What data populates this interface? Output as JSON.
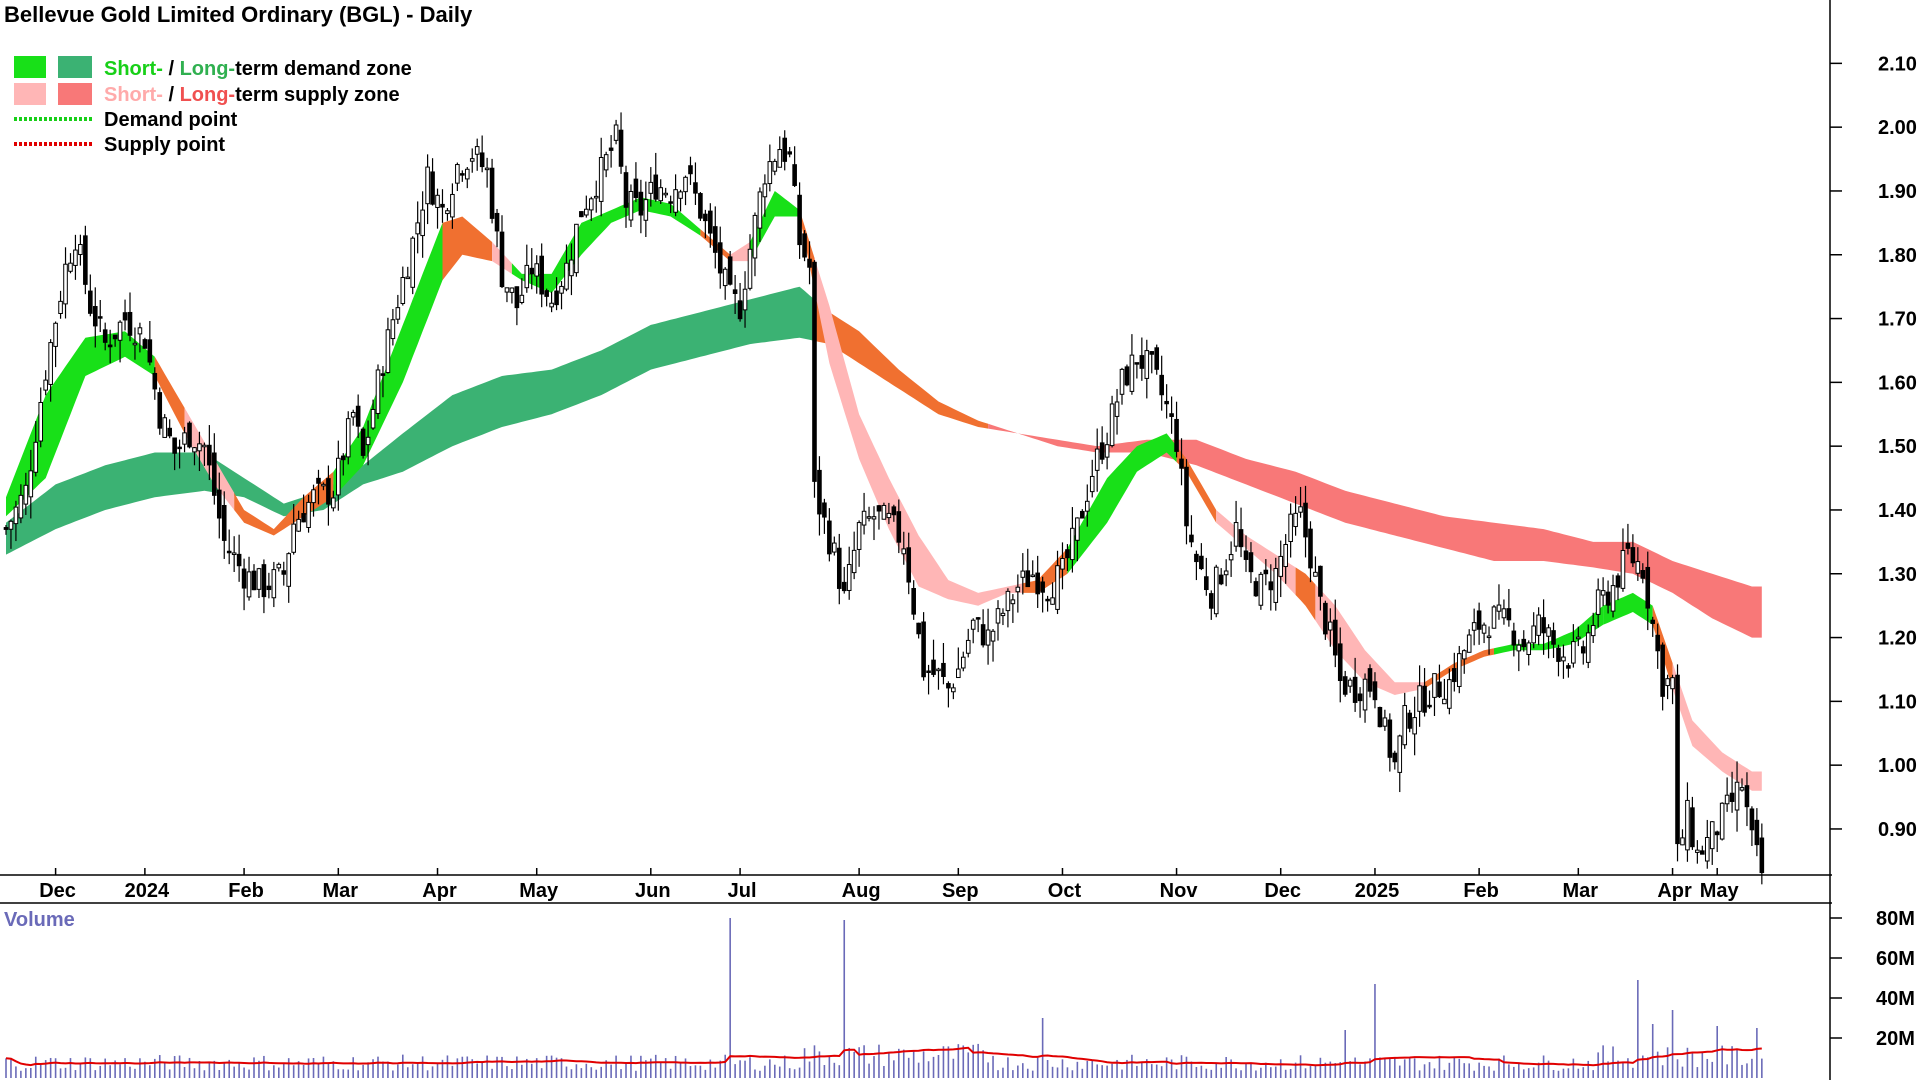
{
  "chart_data": {
    "type": "candlestick",
    "title": "Bellevue Gold Limited Ordinary (BGL) - Daily",
    "legend": {
      "position": "top-left",
      "items": [
        {
          "swatches": [
            "#18e018",
            "#3bb273"
          ],
          "parts": [
            "Short-",
            " / ",
            "Long-",
            "term demand zone"
          ],
          "part_colors": [
            "#18d018",
            "#000000",
            "#30b050",
            "#000000"
          ]
        },
        {
          "swatches": [
            "#ffb6b6",
            "#f87878"
          ],
          "parts": [
            "Short-",
            " / ",
            "Long-",
            "term supply zone"
          ],
          "part_colors": [
            "#ffaaaa",
            "#000000",
            "#f05050",
            "#000000"
          ]
        },
        {
          "line_color": "#18d018",
          "parts": [
            "Demand point"
          ],
          "part_colors": [
            "#000000"
          ]
        },
        {
          "line_color": "#e00000",
          "parts": [
            "Supply point"
          ],
          "part_colors": [
            "#000000"
          ]
        }
      ]
    },
    "price_axis": {
      "side": "right",
      "ylim": [
        0.82,
        2.15
      ],
      "ticks": [
        "2.10",
        "2.00",
        "1.90",
        "1.80",
        "1.70",
        "1.60",
        "1.50",
        "1.40",
        "1.30",
        "1.20",
        "1.10",
        "1.00",
        "0.90"
      ]
    },
    "x_axis": {
      "labels": [
        "Dec",
        "2024",
        "Feb",
        "Mar",
        "Apr",
        "May",
        "Jun",
        "Jul",
        "Aug",
        "Sep",
        "Oct",
        "Nov",
        "Dec",
        "2025",
        "Feb",
        "Mar",
        "Apr",
        "May"
      ],
      "label_index": [
        10,
        28,
        48,
        67,
        87,
        107,
        130,
        148,
        172,
        192,
        213,
        236,
        257,
        276,
        297,
        317,
        336,
        345
      ]
    },
    "colors": {
      "short_demand": "#18e018",
      "long_demand": "#3bb273",
      "short_supply": "#ffb6b6",
      "long_supply": "#f87878",
      "transition": "#f07030",
      "candle_up_fill": "#ffffff",
      "candle_down_fill": "#000000",
      "volume_bar": "#6a6ab8",
      "volume_avg": "#e00000"
    },
    "close_keypoints": [
      [
        0,
        1.37
      ],
      [
        4,
        1.43
      ],
      [
        8,
        1.62
      ],
      [
        12,
        1.78
      ],
      [
        14,
        1.83
      ],
      [
        17,
        1.72
      ],
      [
        20,
        1.66
      ],
      [
        24,
        1.7
      ],
      [
        28,
        1.67
      ],
      [
        31,
        1.55
      ],
      [
        34,
        1.49
      ],
      [
        37,
        1.52
      ],
      [
        40,
        1.5
      ],
      [
        44,
        1.35
      ],
      [
        48,
        1.3
      ],
      [
        52,
        1.28
      ],
      [
        56,
        1.3
      ],
      [
        58,
        1.38
      ],
      [
        62,
        1.42
      ],
      [
        66,
        1.43
      ],
      [
        70,
        1.55
      ],
      [
        72,
        1.48
      ],
      [
        75,
        1.6
      ],
      [
        78,
        1.7
      ],
      [
        82,
        1.82
      ],
      [
        85,
        1.92
      ],
      [
        88,
        1.87
      ],
      [
        91,
        1.94
      ],
      [
        94,
        1.96
      ],
      [
        97,
        1.93
      ],
      [
        100,
        1.77
      ],
      [
        103,
        1.72
      ],
      [
        106,
        1.78
      ],
      [
        110,
        1.73
      ],
      [
        113,
        1.78
      ],
      [
        116,
        1.87
      ],
      [
        120,
        1.93
      ],
      [
        123,
        1.98
      ],
      [
        125,
        1.88
      ],
      [
        128,
        1.87
      ],
      [
        131,
        1.91
      ],
      [
        134,
        1.9
      ],
      [
        137,
        1.93
      ],
      [
        140,
        1.87
      ],
      [
        143,
        1.8
      ],
      [
        146,
        1.73
      ],
      [
        148,
        1.72
      ],
      [
        150,
        1.81
      ],
      [
        153,
        1.93
      ],
      [
        156,
        1.97
      ],
      [
        158,
        1.95
      ],
      [
        160,
        1.82
      ],
      [
        162,
        1.78
      ],
      [
        163,
        1.43
      ],
      [
        165,
        1.38
      ],
      [
        167,
        1.33
      ],
      [
        169,
        1.26
      ],
      [
        172,
        1.37
      ],
      [
        175,
        1.39
      ],
      [
        178,
        1.38
      ],
      [
        181,
        1.35
      ],
      [
        183,
        1.25
      ],
      [
        185,
        1.15
      ],
      [
        188,
        1.14
      ],
      [
        190,
        1.12
      ],
      [
        192,
        1.15
      ],
      [
        195,
        1.22
      ],
      [
        198,
        1.2
      ],
      [
        201,
        1.24
      ],
      [
        204,
        1.28
      ],
      [
        207,
        1.3
      ],
      [
        210,
        1.28
      ],
      [
        213,
        1.3
      ],
      [
        216,
        1.37
      ],
      [
        219,
        1.46
      ],
      [
        222,
        1.52
      ],
      [
        225,
        1.6
      ],
      [
        228,
        1.64
      ],
      [
        231,
        1.62
      ],
      [
        234,
        1.56
      ],
      [
        236,
        1.51
      ],
      [
        238,
        1.38
      ],
      [
        240,
        1.32
      ],
      [
        243,
        1.27
      ],
      [
        246,
        1.32
      ],
      [
        248,
        1.37
      ],
      [
        250,
        1.3
      ],
      [
        253,
        1.28
      ],
      [
        256,
        1.3
      ],
      [
        259,
        1.37
      ],
      [
        261,
        1.39
      ],
      [
        263,
        1.33
      ],
      [
        265,
        1.25
      ],
      [
        267,
        1.2
      ],
      [
        269,
        1.13
      ],
      [
        272,
        1.12
      ],
      [
        274,
        1.13
      ],
      [
        276,
        1.12
      ],
      [
        278,
        1.05
      ],
      [
        280,
        1.0
      ],
      [
        282,
        1.07
      ],
      [
        285,
        1.1
      ],
      [
        288,
        1.12
      ],
      [
        291,
        1.13
      ],
      [
        294,
        1.18
      ],
      [
        297,
        1.22
      ],
      [
        300,
        1.23
      ],
      [
        303,
        1.22
      ],
      [
        306,
        1.19
      ],
      [
        309,
        1.22
      ],
      [
        312,
        1.19
      ],
      [
        315,
        1.17
      ],
      [
        318,
        1.18
      ],
      [
        321,
        1.25
      ],
      [
        324,
        1.28
      ],
      [
        327,
        1.33
      ],
      [
        330,
        1.31
      ],
      [
        332,
        1.22
      ],
      [
        334,
        1.13
      ],
      [
        336,
        1.13
      ],
      [
        337,
        0.86
      ],
      [
        339,
        0.92
      ],
      [
        341,
        0.86
      ],
      [
        344,
        0.89
      ],
      [
        347,
        0.93
      ],
      [
        350,
        0.97
      ],
      [
        352,
        0.88
      ],
      [
        354,
        0.83
      ]
    ],
    "band_keypoints": {
      "short_upper": [
        [
          0,
          1.42
        ],
        [
          8,
          1.58
        ],
        [
          16,
          1.67
        ],
        [
          24,
          1.68
        ],
        [
          30,
          1.64
        ],
        [
          36,
          1.56
        ],
        [
          42,
          1.48
        ],
        [
          48,
          1.4
        ],
        [
          54,
          1.37
        ],
        [
          60,
          1.42
        ],
        [
          66,
          1.46
        ],
        [
          72,
          1.53
        ],
        [
          80,
          1.69
        ],
        [
          88,
          1.85
        ],
        [
          92,
          1.86
        ],
        [
          98,
          1.82
        ],
        [
          104,
          1.77
        ],
        [
          110,
          1.77
        ],
        [
          116,
          1.85
        ],
        [
          122,
          1.87
        ],
        [
          128,
          1.89
        ],
        [
          134,
          1.88
        ],
        [
          140,
          1.84
        ],
        [
          146,
          1.8
        ],
        [
          150,
          1.82
        ],
        [
          155,
          1.9
        ],
        [
          160,
          1.87
        ],
        [
          166,
          1.72
        ],
        [
          172,
          1.55
        ],
        [
          178,
          1.45
        ],
        [
          184,
          1.36
        ],
        [
          190,
          1.29
        ],
        [
          196,
          1.27
        ],
        [
          202,
          1.28
        ],
        [
          208,
          1.29
        ],
        [
          214,
          1.34
        ],
        [
          222,
          1.45
        ],
        [
          228,
          1.5
        ],
        [
          234,
          1.52
        ],
        [
          238,
          1.48
        ],
        [
          244,
          1.4
        ],
        [
          250,
          1.36
        ],
        [
          256,
          1.33
        ],
        [
          262,
          1.3
        ],
        [
          268,
          1.25
        ],
        [
          274,
          1.18
        ],
        [
          280,
          1.13
        ],
        [
          286,
          1.13
        ],
        [
          292,
          1.16
        ],
        [
          298,
          1.18
        ],
        [
          304,
          1.19
        ],
        [
          310,
          1.19
        ],
        [
          316,
          1.21
        ],
        [
          322,
          1.25
        ],
        [
          328,
          1.27
        ],
        [
          332,
          1.25
        ],
        [
          336,
          1.16
        ],
        [
          340,
          1.07
        ],
        [
          346,
          1.02
        ],
        [
          352,
          0.99
        ]
      ],
      "short_lower": [
        [
          0,
          1.39
        ],
        [
          8,
          1.45
        ],
        [
          16,
          1.61
        ],
        [
          24,
          1.64
        ],
        [
          30,
          1.61
        ],
        [
          36,
          1.52
        ],
        [
          42,
          1.44
        ],
        [
          48,
          1.38
        ],
        [
          54,
          1.36
        ],
        [
          60,
          1.39
        ],
        [
          66,
          1.42
        ],
        [
          72,
          1.47
        ],
        [
          80,
          1.6
        ],
        [
          88,
          1.76
        ],
        [
          92,
          1.8
        ],
        [
          98,
          1.79
        ],
        [
          104,
          1.76
        ],
        [
          110,
          1.74
        ],
        [
          116,
          1.8
        ],
        [
          122,
          1.85
        ],
        [
          128,
          1.87
        ],
        [
          134,
          1.86
        ],
        [
          140,
          1.83
        ],
        [
          146,
          1.79
        ],
        [
          150,
          1.79
        ],
        [
          155,
          1.86
        ],
        [
          160,
          1.86
        ],
        [
          166,
          1.63
        ],
        [
          172,
          1.48
        ],
        [
          178,
          1.37
        ],
        [
          184,
          1.28
        ],
        [
          190,
          1.26
        ],
        [
          196,
          1.25
        ],
        [
          202,
          1.27
        ],
        [
          208,
          1.27
        ],
        [
          214,
          1.3
        ],
        [
          222,
          1.38
        ],
        [
          228,
          1.46
        ],
        [
          234,
          1.49
        ],
        [
          238,
          1.46
        ],
        [
          244,
          1.38
        ],
        [
          250,
          1.34
        ],
        [
          256,
          1.3
        ],
        [
          262,
          1.25
        ],
        [
          268,
          1.18
        ],
        [
          274,
          1.13
        ],
        [
          280,
          1.11
        ],
        [
          286,
          1.12
        ],
        [
          292,
          1.15
        ],
        [
          298,
          1.17
        ],
        [
          304,
          1.18
        ],
        [
          310,
          1.18
        ],
        [
          316,
          1.19
        ],
        [
          322,
          1.22
        ],
        [
          328,
          1.24
        ],
        [
          332,
          1.22
        ],
        [
          336,
          1.12
        ],
        [
          340,
          1.03
        ],
        [
          346,
          0.99
        ],
        [
          352,
          0.96
        ]
      ],
      "long_upper": [
        [
          0,
          1.38
        ],
        [
          10,
          1.44
        ],
        [
          20,
          1.47
        ],
        [
          30,
          1.49
        ],
        [
          40,
          1.49
        ],
        [
          48,
          1.45
        ],
        [
          56,
          1.41
        ],
        [
          64,
          1.43
        ],
        [
          72,
          1.47
        ],
        [
          80,
          1.52
        ],
        [
          90,
          1.58
        ],
        [
          100,
          1.61
        ],
        [
          110,
          1.62
        ],
        [
          120,
          1.65
        ],
        [
          130,
          1.69
        ],
        [
          140,
          1.71
        ],
        [
          150,
          1.73
        ],
        [
          160,
          1.75
        ],
        [
          166,
          1.71
        ],
        [
          172,
          1.68
        ],
        [
          180,
          1.62
        ],
        [
          188,
          1.57
        ],
        [
          196,
          1.54
        ],
        [
          204,
          1.52
        ],
        [
          212,
          1.51
        ],
        [
          220,
          1.5
        ],
        [
          230,
          1.51
        ],
        [
          240,
          1.51
        ],
        [
          250,
          1.48
        ],
        [
          260,
          1.46
        ],
        [
          270,
          1.43
        ],
        [
          280,
          1.41
        ],
        [
          290,
          1.39
        ],
        [
          300,
          1.38
        ],
        [
          310,
          1.37
        ],
        [
          320,
          1.35
        ],
        [
          328,
          1.35
        ],
        [
          336,
          1.32
        ],
        [
          344,
          1.3
        ],
        [
          352,
          1.28
        ]
      ],
      "long_lower": [
        [
          0,
          1.33
        ],
        [
          10,
          1.37
        ],
        [
          20,
          1.4
        ],
        [
          30,
          1.42
        ],
        [
          40,
          1.43
        ],
        [
          48,
          1.42
        ],
        [
          56,
          1.39
        ],
        [
          64,
          1.4
        ],
        [
          72,
          1.44
        ],
        [
          80,
          1.46
        ],
        [
          90,
          1.5
        ],
        [
          100,
          1.53
        ],
        [
          110,
          1.55
        ],
        [
          120,
          1.58
        ],
        [
          130,
          1.62
        ],
        [
          140,
          1.64
        ],
        [
          150,
          1.66
        ],
        [
          160,
          1.67
        ],
        [
          166,
          1.66
        ],
        [
          172,
          1.63
        ],
        [
          180,
          1.59
        ],
        [
          188,
          1.55
        ],
        [
          196,
          1.53
        ],
        [
          204,
          1.52
        ],
        [
          212,
          1.5
        ],
        [
          220,
          1.49
        ],
        [
          230,
          1.49
        ],
        [
          240,
          1.47
        ],
        [
          250,
          1.44
        ],
        [
          260,
          1.41
        ],
        [
          270,
          1.38
        ],
        [
          280,
          1.36
        ],
        [
          290,
          1.34
        ],
        [
          300,
          1.32
        ],
        [
          310,
          1.32
        ],
        [
          320,
          1.31
        ],
        [
          328,
          1.3
        ],
        [
          336,
          1.27
        ],
        [
          344,
          1.23
        ],
        [
          352,
          1.2
        ]
      ]
    },
    "volume": {
      "title": "Volume",
      "ticks": [
        "80M",
        "60M",
        "40M",
        "20M"
      ],
      "ylim": [
        0,
        85
      ],
      "spikes": [
        [
          146,
          80
        ],
        [
          169,
          79
        ],
        [
          276,
          47
        ],
        [
          329,
          49
        ],
        [
          209,
          30
        ],
        [
          336,
          34
        ],
        [
          353,
          25
        ],
        [
          332,
          27
        ],
        [
          270,
          24
        ],
        [
          345,
          26
        ]
      ],
      "baseline": 9
    }
  }
}
